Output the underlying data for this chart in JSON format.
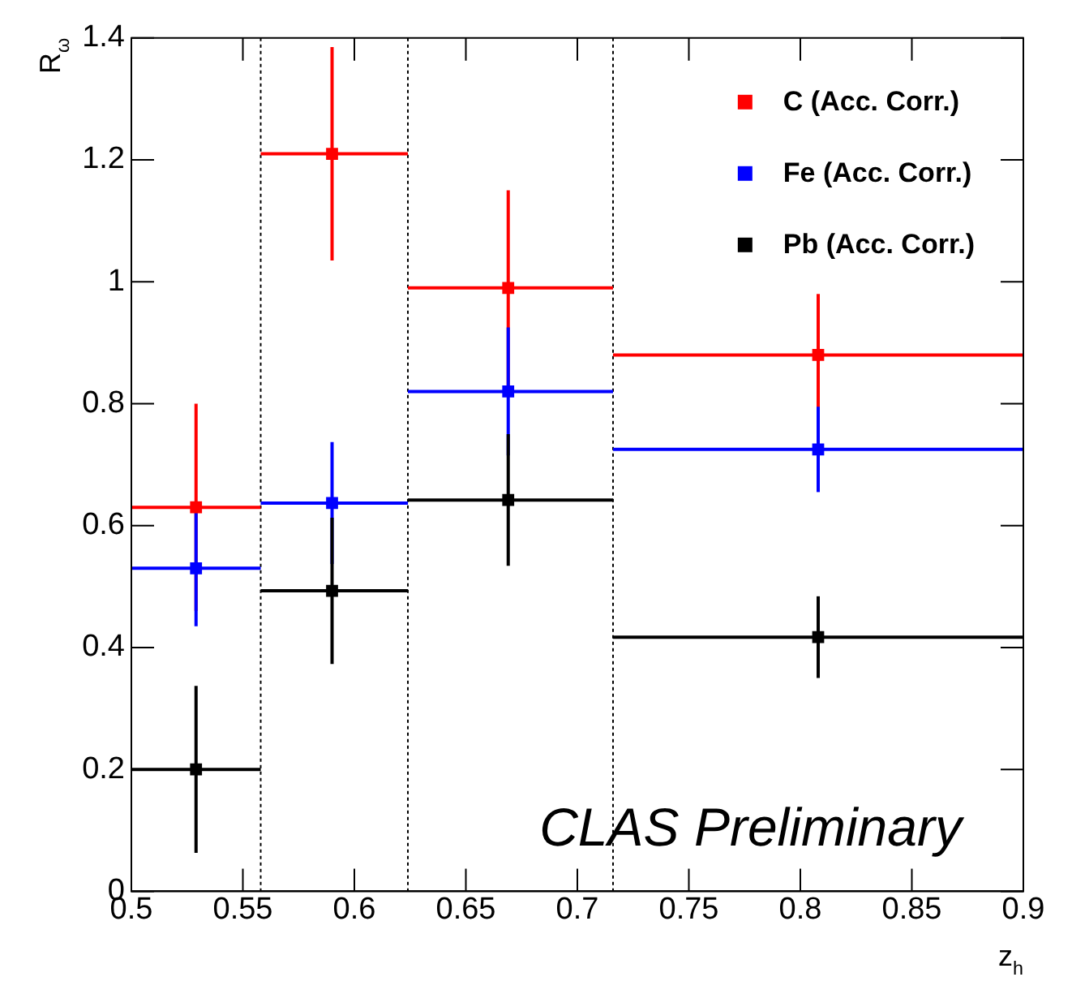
{
  "chart_data": {
    "type": "scatter",
    "xlabel": "z$_{h}$",
    "ylabel": "R$_{ω}$",
    "xlim": [
      0.5,
      0.9
    ],
    "xticks": [
      0.5,
      0.55,
      0.6,
      0.65,
      0.7,
      0.75,
      0.8,
      0.85,
      0.9
    ],
    "ylim": [
      0,
      1.4
    ],
    "yticks": [
      0,
      0.2,
      0.4,
      0.6,
      0.8,
      1,
      1.2,
      1.4
    ],
    "grid": false,
    "legend": "top right",
    "marker": "square",
    "series": [
      {
        "name": "C (Acc. Corr.)",
        "color": "#ff0000",
        "x": [
          0.529,
          0.59,
          0.669,
          0.808
        ],
        "values": [
          0.63,
          1.21,
          0.99,
          0.88
        ],
        "errors": [
          0.17,
          0.175,
          0.16,
          0.1
        ],
        "xerrors": [
          [
            0.5,
            0.558
          ],
          [
            0.558,
            0.624
          ],
          [
            0.624,
            0.716
          ],
          [
            0.716,
            0.9
          ]
        ]
      },
      {
        "name": "Fe (Acc. Corr.)",
        "color": "#0000ff",
        "x": [
          0.529,
          0.59,
          0.669,
          0.808
        ],
        "values": [
          0.53,
          0.637,
          0.82,
          0.725
        ],
        "errors": [
          0.095,
          0.1,
          0.105,
          0.07
        ],
        "xerrors": [
          [
            0.5,
            0.558
          ],
          [
            0.558,
            0.624
          ],
          [
            0.624,
            0.716
          ],
          [
            0.716,
            0.9
          ]
        ]
      },
      {
        "name": "Pb (Acc. Corr.)",
        "color": "#000000",
        "x": [
          0.529,
          0.59,
          0.669,
          0.808
        ],
        "values": [
          0.2,
          0.493,
          0.642,
          0.417
        ],
        "errors": [
          0.137,
          0.12,
          0.108,
          0.067
        ],
        "xerrors": [
          [
            0.5,
            0.558
          ],
          [
            0.558,
            0.624
          ],
          [
            0.624,
            0.716
          ],
          [
            0.716,
            0.9
          ]
        ]
      }
    ],
    "ref_lines": [
      {
        "axis": "x",
        "value": 0.558,
        "color": "#000000",
        "line_style": "dotted"
      },
      {
        "axis": "x",
        "value": 0.624,
        "color": "#000000",
        "line_style": "dotted"
      },
      {
        "axis": "x",
        "value": 0.716,
        "color": "#000000",
        "line_style": "dotted"
      }
    ],
    "annotations": [
      "CLAS Preliminary"
    ]
  }
}
